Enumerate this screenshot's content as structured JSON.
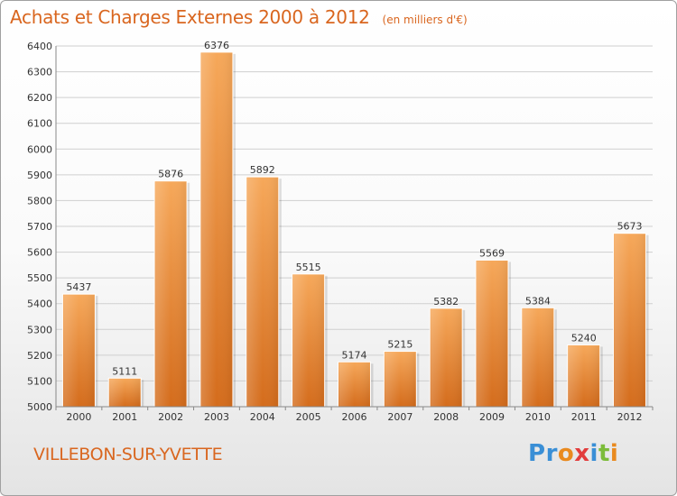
{
  "title": "Achats et Charges Externes 2000 à 2012",
  "subtitle": "(en milliers d'€)",
  "city": "VILLEBON-SUR-YVETTE",
  "logo_text": "Proxiti",
  "colors": {
    "accent": "#d9661f",
    "bar_light": "#f6a85a",
    "bar_dark": "#d7701e"
  },
  "chart_data": {
    "type": "bar",
    "title": "Achats et Charges Externes 2000 à 2012",
    "subtitle": "(en milliers d'€)",
    "categories": [
      "2000",
      "2001",
      "2002",
      "2003",
      "2004",
      "2005",
      "2006",
      "2007",
      "2008",
      "2009",
      "2010",
      "2011",
      "2012"
    ],
    "values": [
      5437,
      5111,
      5876,
      6376,
      5892,
      5515,
      5174,
      5215,
      5382,
      5569,
      5384,
      5240,
      5673
    ],
    "ylim": [
      5000,
      6400
    ],
    "yticks": [
      5000,
      5100,
      5200,
      5300,
      5400,
      5500,
      5600,
      5700,
      5800,
      5900,
      6000,
      6100,
      6200,
      6300,
      6400
    ],
    "grid": true,
    "xlabel": "",
    "ylabel": ""
  }
}
